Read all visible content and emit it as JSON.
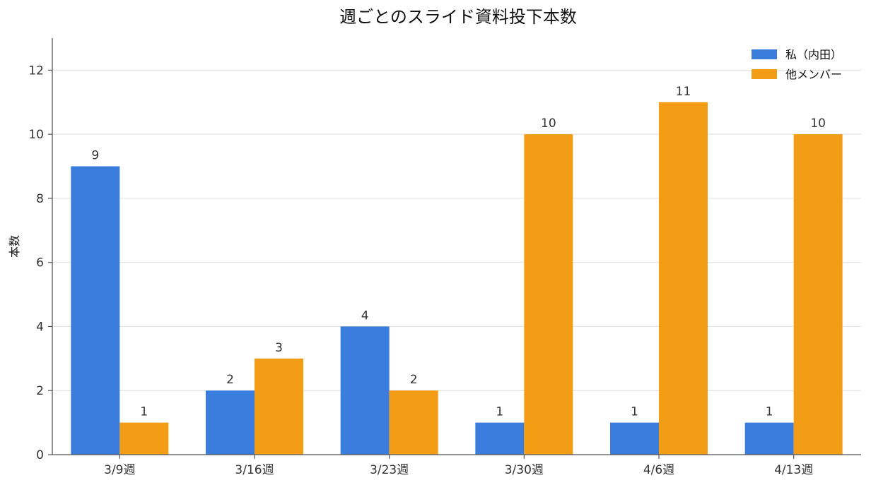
{
  "chart_data": {
    "type": "bar",
    "title": "週ごとのスライド資料投下本数",
    "xlabel": "",
    "ylabel": "本数",
    "categories": [
      "3/9週",
      "3/16週",
      "3/23週",
      "3/30週",
      "4/6週",
      "4/13週"
    ],
    "series": [
      {
        "name": "私（内田）",
        "values": [
          9,
          2,
          4,
          1,
          1,
          1
        ],
        "color": "#3b7ddd"
      },
      {
        "name": "他メンバー",
        "values": [
          1,
          3,
          2,
          10,
          11,
          10
        ],
        "color": "#f29d15"
      }
    ],
    "ylim": [
      0,
      13
    ],
    "yticks": [
      0,
      2,
      4,
      6,
      8,
      10,
      12
    ],
    "grid": true,
    "legend": "top-right",
    "data_labels": true
  }
}
